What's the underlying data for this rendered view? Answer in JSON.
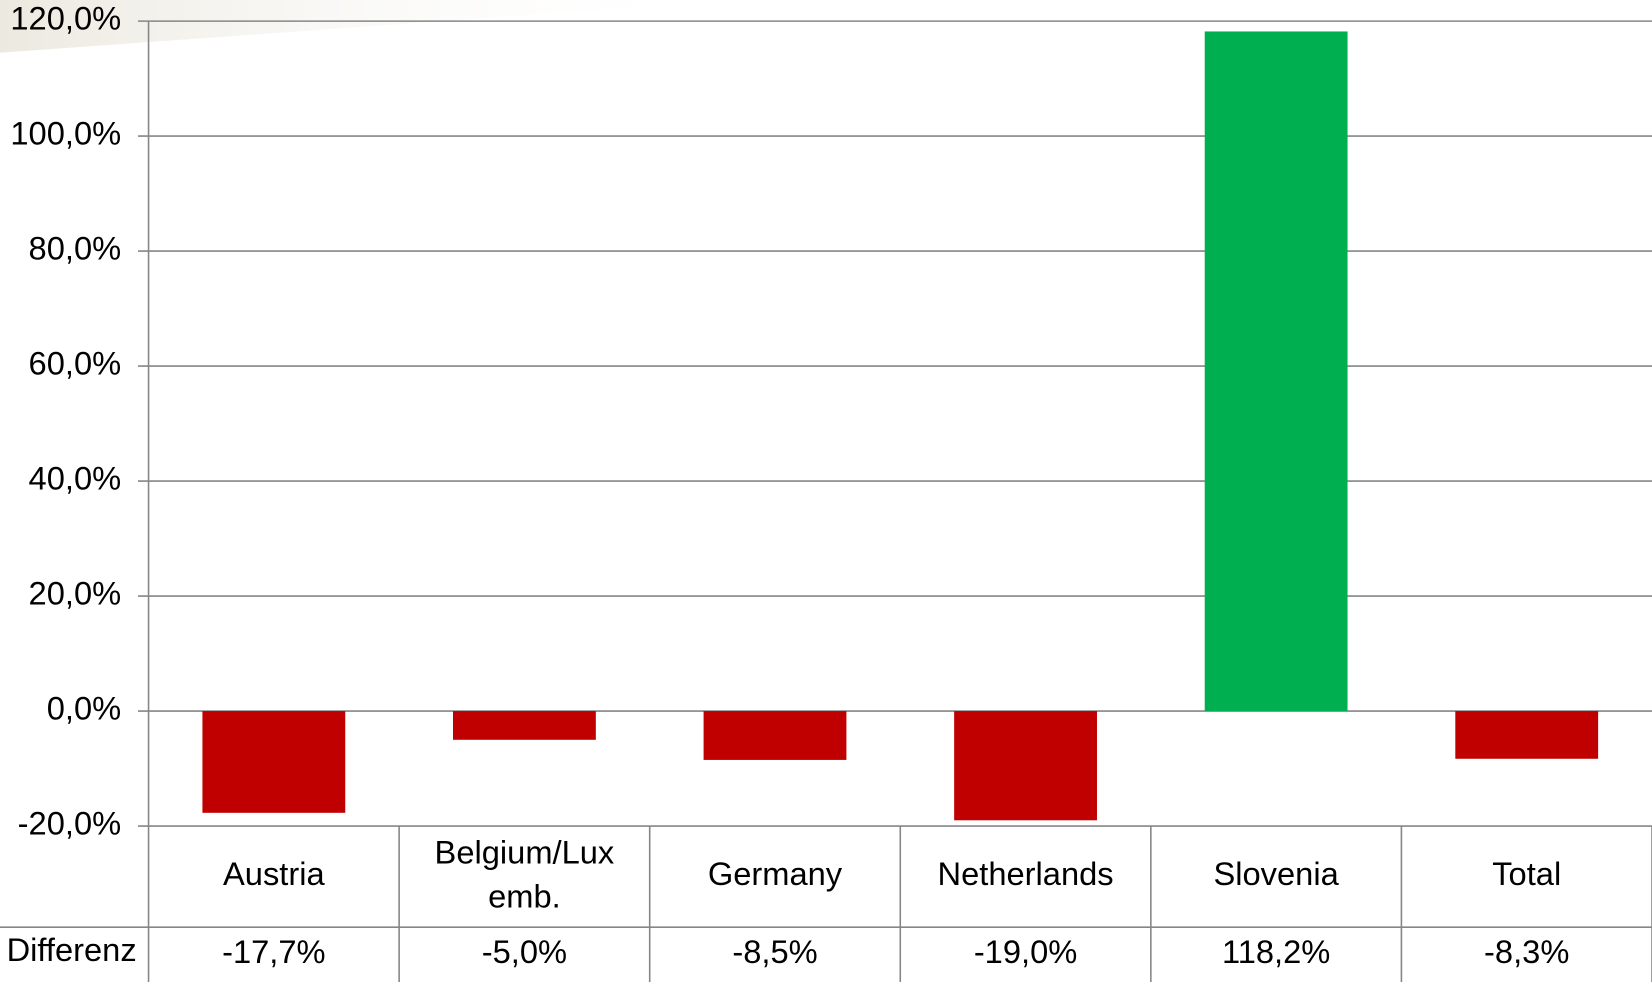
{
  "chart_data": {
    "type": "bar",
    "categories": [
      "Austria",
      "Belgium/Lux emb.",
      "Germany",
      "Netherlands",
      "Slovenia",
      "Total"
    ],
    "series": [
      {
        "name": "Differenz",
        "values": [
          -17.7,
          -5.0,
          -8.5,
          -19.0,
          118.2,
          -8.3
        ],
        "value_labels": [
          "-17,7%",
          "-5,0%",
          "-8,5%",
          "-19,0%",
          "118,2%",
          "-8,3%"
        ],
        "colors": [
          "#c00000",
          "#c00000",
          "#c00000",
          "#c00000",
          "#00b050",
          "#c00000"
        ]
      }
    ],
    "ylim": [
      -20,
      120
    ],
    "yticks": [
      {
        "value": -20,
        "label": "-20,0%"
      },
      {
        "value": 0,
        "label": "0,0%"
      },
      {
        "value": 20,
        "label": "20,0%"
      },
      {
        "value": 40,
        "label": "40,0%"
      },
      {
        "value": 60,
        "label": "60,0%"
      },
      {
        "value": 80,
        "label": "80,0%"
      },
      {
        "value": 100,
        "label": "100,0%"
      },
      {
        "value": 120,
        "label": "120,0%"
      }
    ],
    "grid": true
  }
}
